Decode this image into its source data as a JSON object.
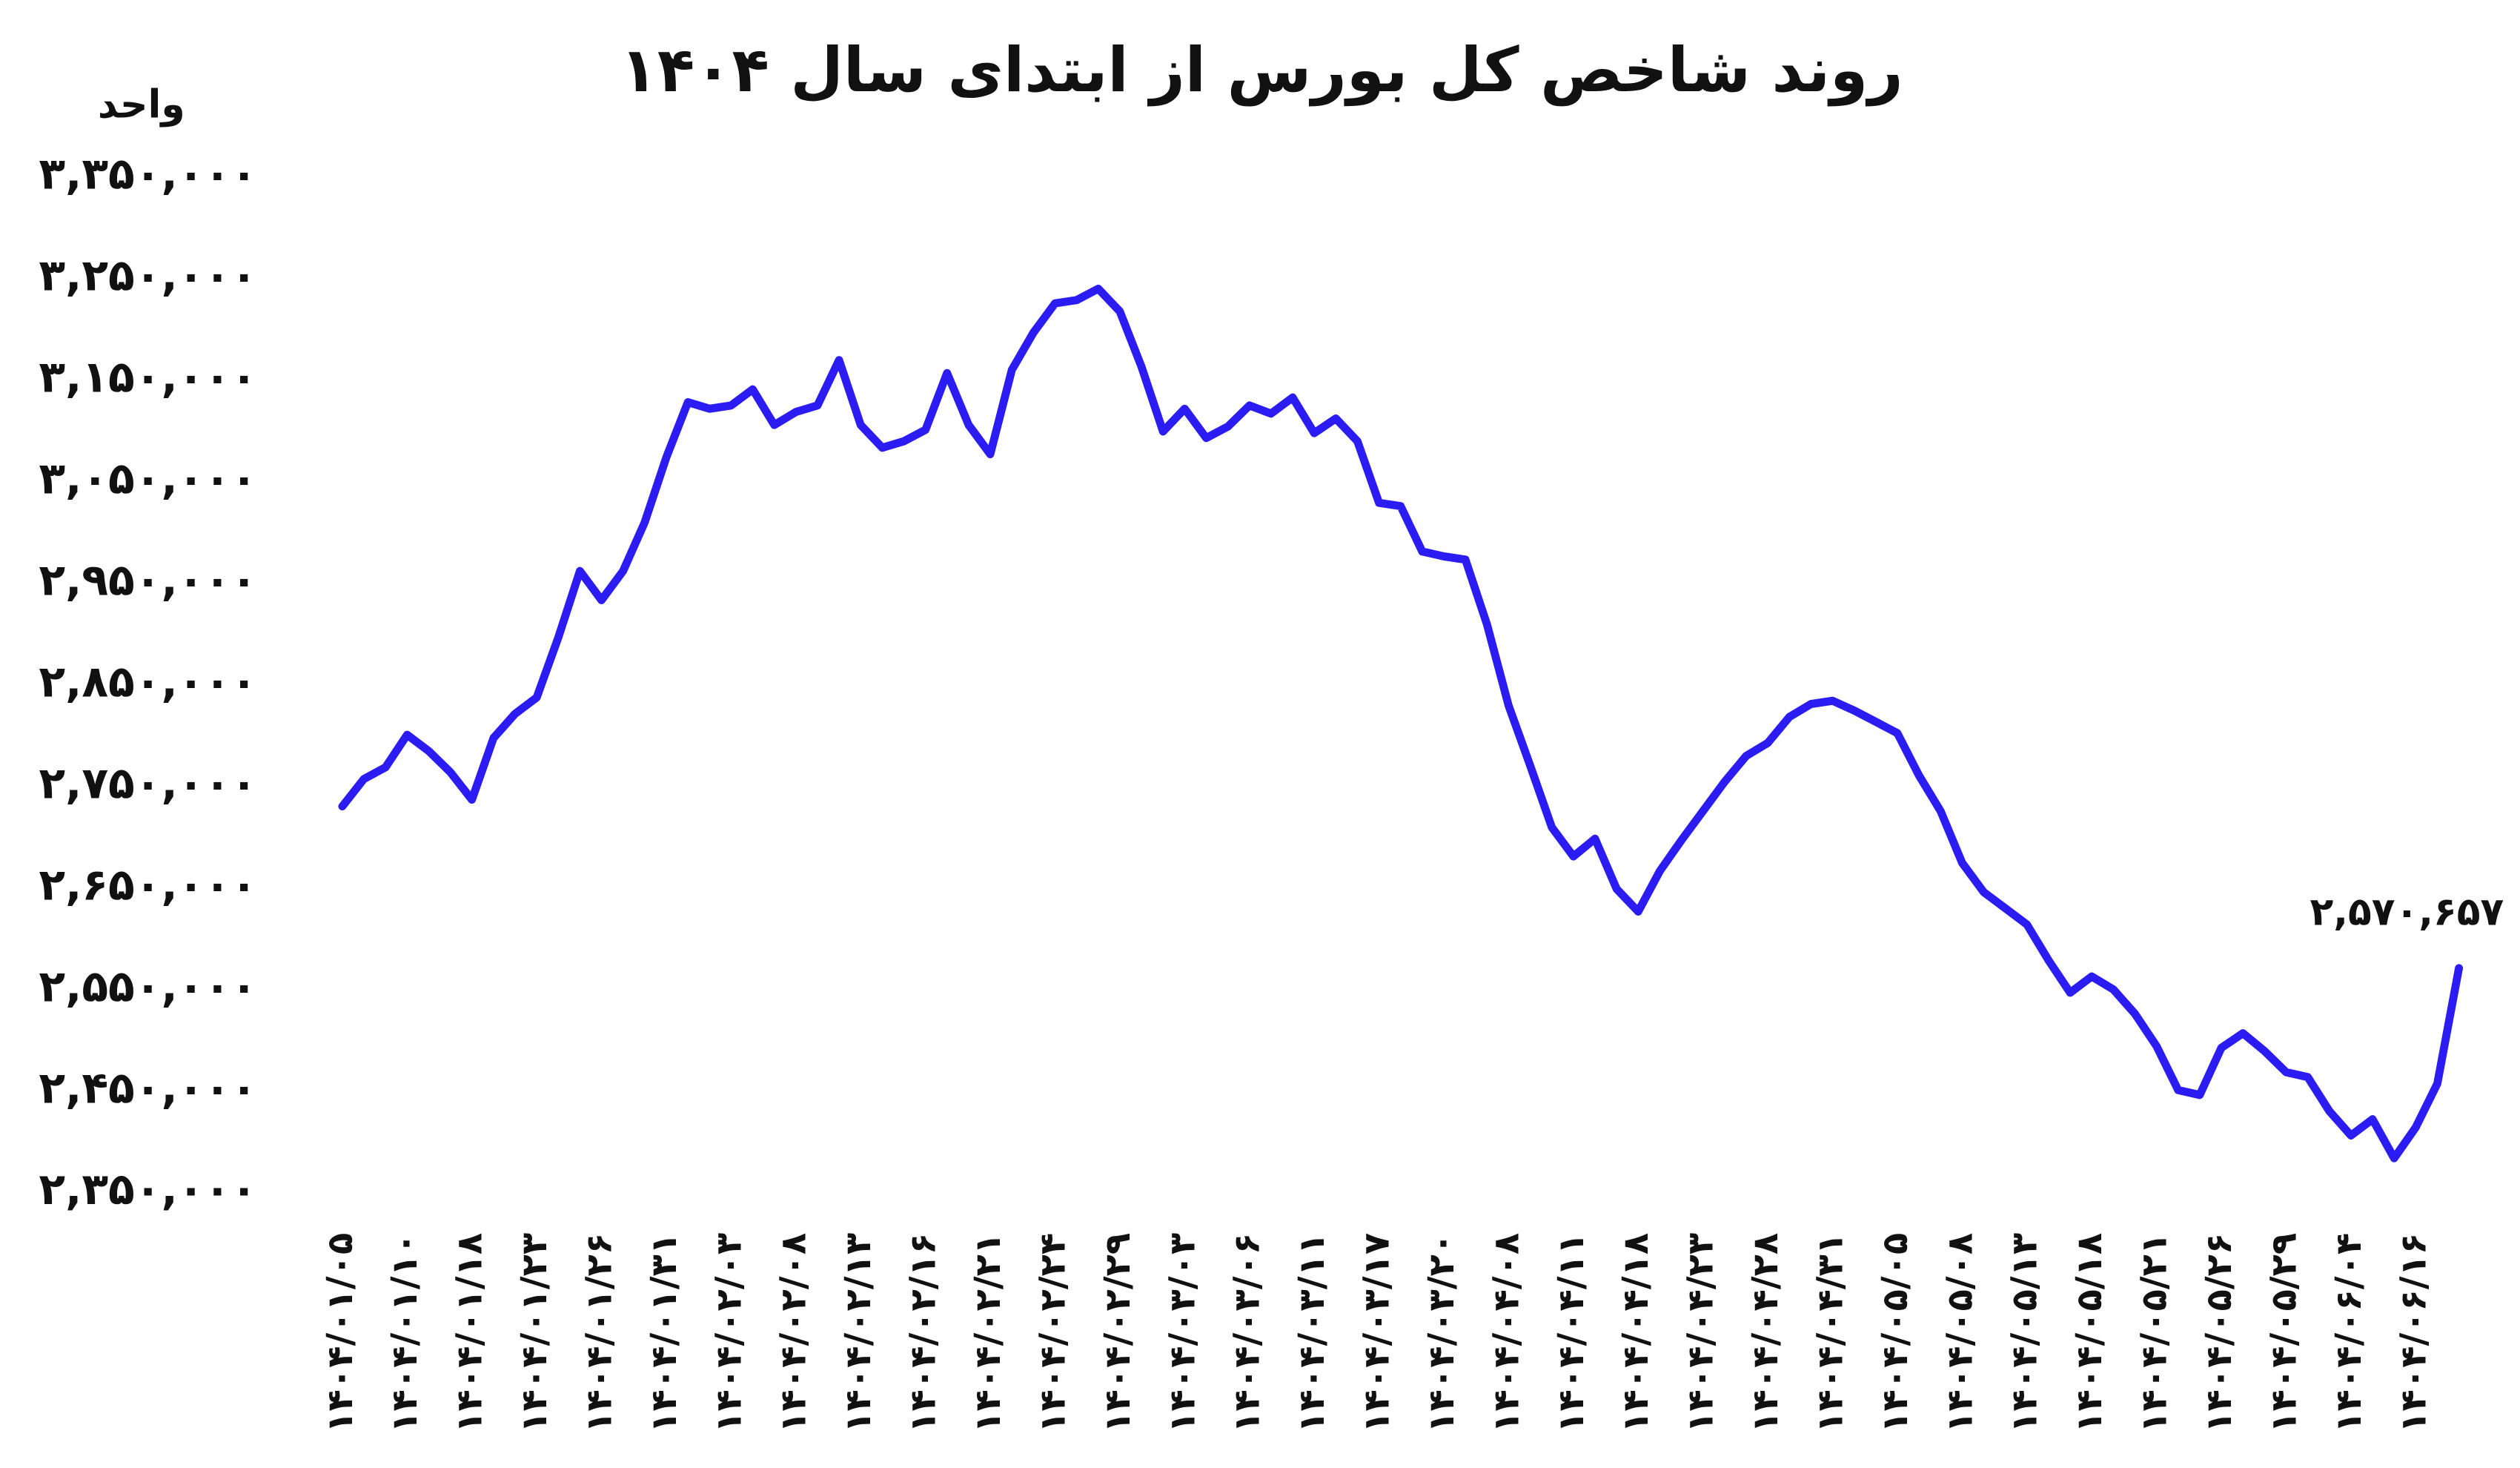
{
  "chart_data": {
    "type": "line",
    "title": "روند شاخص کل بورس از ابتدای سال ۱۴۰۴",
    "y_label": "واحد",
    "categories": [
      "۱۴۰۴/۰۱/۰۵",
      null,
      null,
      "۱۴۰۴/۰۱/۱۰",
      null,
      null,
      "۱۴۰۴/۰۱/۱۸",
      null,
      null,
      "۱۴۰۴/۰۱/۲۳",
      null,
      null,
      "۱۴۰۴/۰۱/۲۶",
      null,
      null,
      "۱۴۰۴/۰۱/۳۱",
      null,
      null,
      "۱۴۰۴/۰۲/۰۳",
      null,
      null,
      "۱۴۰۴/۰۲/۰۸",
      null,
      null,
      "۱۴۰۴/۰۲/۱۳",
      null,
      null,
      "۱۴۰۴/۰۲/۱۶",
      null,
      null,
      "۱۴۰۴/۰۲/۲۱",
      null,
      null,
      "۱۴۰۴/۰۲/۲۴",
      null,
      null,
      "۱۴۰۴/۰۲/۲۹",
      null,
      null,
      "۱۴۰۴/۰۳/۰۳",
      null,
      null,
      "۱۴۰۴/۰۳/۰۶",
      null,
      null,
      "۱۴۰۴/۰۳/۱۱",
      null,
      null,
      "۱۴۰۴/۰۳/۱۷",
      null,
      null,
      "۱۴۰۴/۰۳/۲۰",
      null,
      null,
      "۱۴۰۴/۰۴/۰۸",
      null,
      null,
      "۱۴۰۴/۰۴/۱۱",
      null,
      null,
      "۱۴۰۴/۰۴/۱۸",
      null,
      null,
      "۱۴۰۴/۰۴/۲۳",
      null,
      null,
      "۱۴۰۴/۰۴/۲۸",
      null,
      null,
      "۱۴۰۴/۰۴/۳۱",
      null,
      null,
      "۱۴۰۴/۰۵/۰۵",
      null,
      null,
      "۱۴۰۴/۰۵/۰۸",
      null,
      null,
      "۱۴۰۴/۰۵/۱۳",
      null,
      null,
      "۱۴۰۴/۰۵/۱۸",
      null,
      null,
      "۱۴۰۴/۰۵/۲۱",
      null,
      null,
      "۱۴۰۴/۰۵/۲۶",
      null,
      null,
      "۱۴۰۴/۰۵/۲۹",
      null,
      null,
      "۱۴۰۴/۰۶/۰۴",
      null,
      null,
      "۱۴۰۴/۰۶/۱۶",
      null,
      null
    ],
    "values": [
      2730000,
      2757000,
      2768500,
      2800500,
      2784500,
      2763700,
      2736600,
      2797300,
      2821200,
      2837200,
      2896300,
      2961800,
      2933100,
      2961800,
      3009700,
      3073600,
      3128000,
      3121600,
      3124800,
      3140700,
      3105600,
      3118400,
      3124800,
      3169500,
      3105600,
      3083200,
      3089600,
      3100800,
      3156700,
      3105600,
      3076800,
      3159900,
      3196600,
      3225400,
      3228600,
      3239800,
      3217400,
      3163100,
      3099200,
      3121600,
      3092800,
      3104000,
      3124800,
      3116800,
      3132700,
      3097600,
      3112000,
      3089600,
      3028900,
      3025700,
      2981000,
      2976200,
      2973000,
      2909100,
      2829200,
      2770100,
      2709400,
      2680700,
      2698200,
      2648700,
      2626400,
      2666300,
      2696600,
      2725400,
      2754200,
      2779700,
      2792500,
      2818100,
      2830800,
      2834000,
      2824400,
      2813300,
      2802100,
      2760500,
      2725400,
      2674300,
      2645500,
      2629600,
      2613600,
      2578400,
      2546500,
      2562500,
      2549700,
      2525700,
      2493800,
      2450600,
      2445800,
      2492200,
      2506600,
      2489000,
      2468200,
      2463400,
      2429900,
      2405900,
      2421900,
      2383500,
      2413900,
      2457000,
      2570657
    ],
    "value_labels": [
      null,
      null,
      null,
      null,
      null,
      null,
      null,
      null,
      null,
      null,
      null,
      null,
      null,
      null,
      null,
      null,
      null,
      null,
      null,
      null,
      null,
      null,
      null,
      null,
      null,
      null,
      null,
      null,
      null,
      null,
      null,
      null,
      null,
      null,
      null,
      null,
      null,
      null,
      null,
      null,
      null,
      null,
      null,
      null,
      null,
      null,
      null,
      null,
      null,
      null,
      null,
      null,
      null,
      null,
      null,
      null,
      null,
      null,
      null,
      null,
      null,
      null,
      null,
      null,
      null,
      null,
      null,
      null,
      null,
      null,
      null,
      null,
      null,
      null,
      null,
      null,
      null,
      null,
      null,
      null,
      null,
      null,
      null,
      null,
      null,
      null,
      null,
      null,
      null,
      null,
      null,
      null,
      null,
      null,
      null,
      null,
      null,
      null,
      "۲,۵۷۰,۶۵۷"
    ],
    "color": "#2a1cf2",
    "ylim": [
      2350000,
      3350000
    ],
    "yticks": [
      {
        "value": 3350000,
        "label": "۳,۳۵۰,۰۰۰"
      },
      {
        "value": 3250000,
        "label": "۳,۲۵۰,۰۰۰"
      },
      {
        "value": 3150000,
        "label": "۳,۱۵۰,۰۰۰"
      },
      {
        "value": 3050000,
        "label": "۳,۰۵۰,۰۰۰"
      },
      {
        "value": 2950000,
        "label": "۲,۹۵۰,۰۰۰"
      },
      {
        "value": 2850000,
        "label": "۲,۸۵۰,۰۰۰"
      },
      {
        "value": 2750000,
        "label": "۲,۷۵۰,۰۰۰"
      },
      {
        "value": 2650000,
        "label": "۲,۶۵۰,۰۰۰"
      },
      {
        "value": 2550000,
        "label": "۲,۵۵۰,۰۰۰"
      },
      {
        "value": 2450000,
        "label": "۲,۴۵۰,۰۰۰"
      },
      {
        "value": 2350000,
        "label": "۲,۳۵۰,۰۰۰"
      }
    ],
    "grid": false
  }
}
